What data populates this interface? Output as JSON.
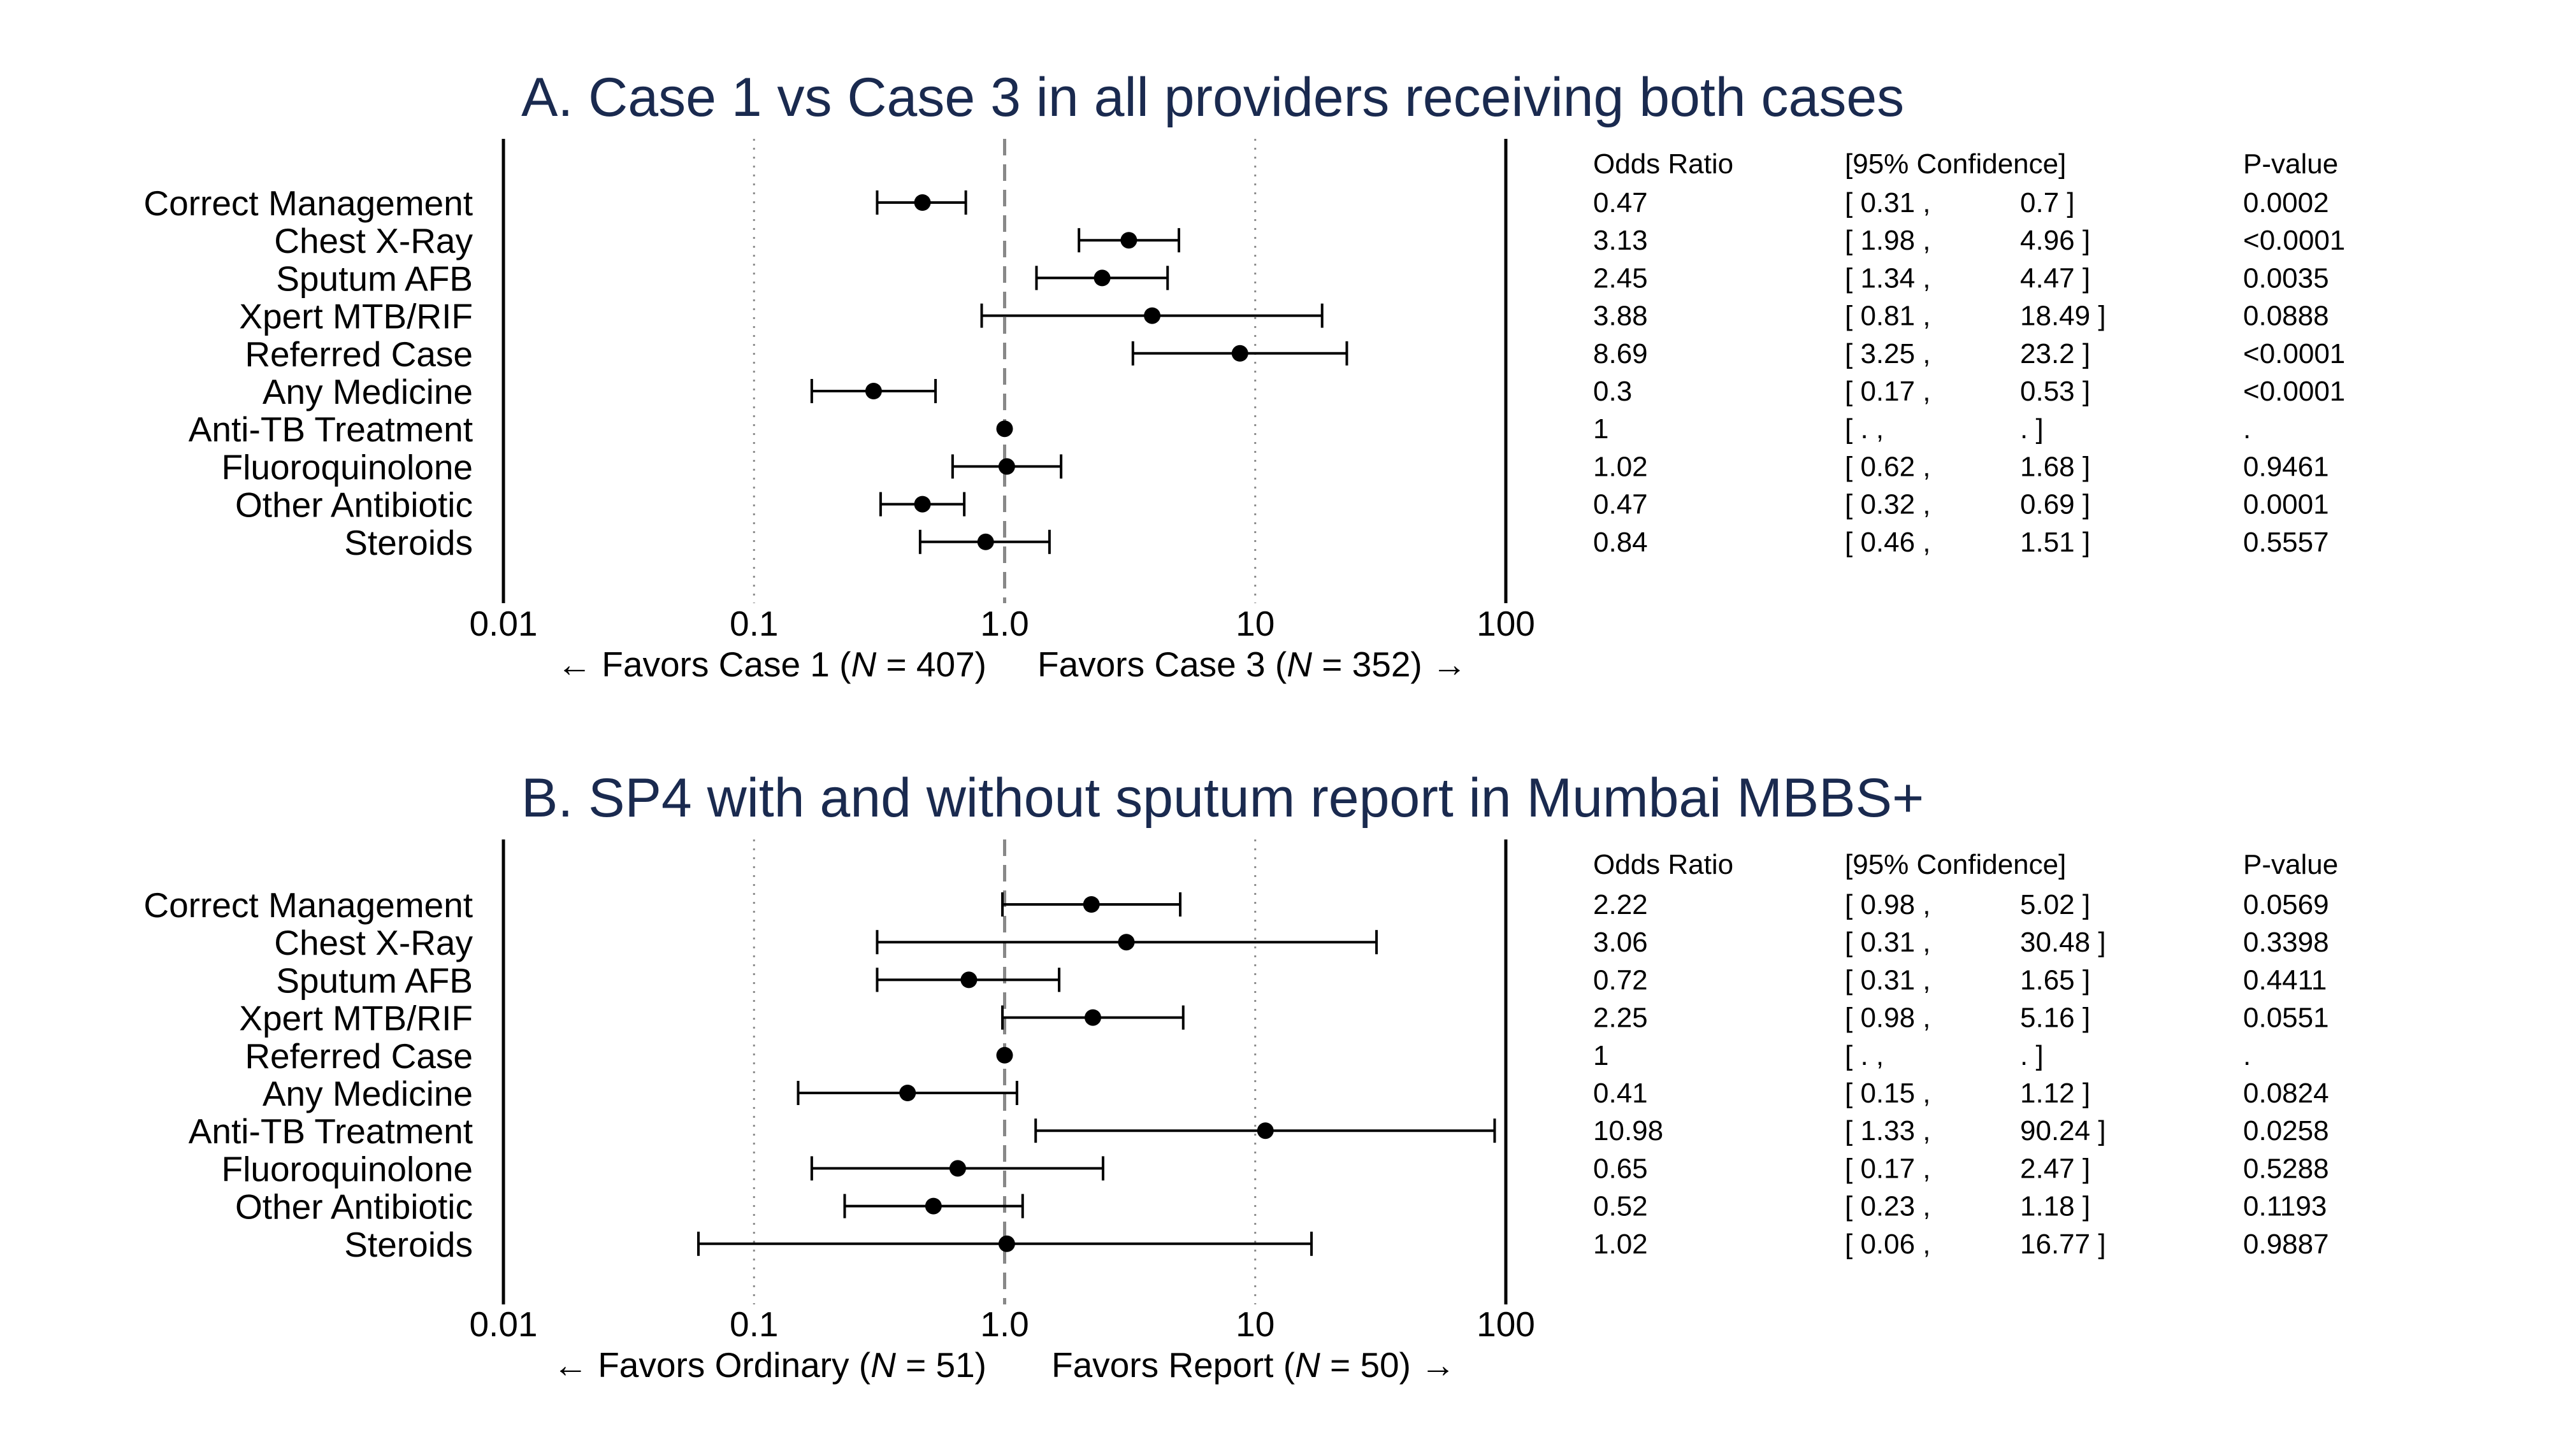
{
  "chart_data": [
    {
      "type": "forest",
      "title": "A. Case 1 vs Case 3 in all providers receiving both cases",
      "x_scale": "log",
      "xlim": [
        0.01,
        100
      ],
      "ticks": [
        "0.01",
        "0.1",
        "1.0",
        "10",
        "100"
      ],
      "tick_values": [
        0.01,
        0.1,
        1,
        10,
        100
      ],
      "reference_line": 1,
      "favors_left": {
        "arrow": "←",
        "pre": "Favors Case 1 (",
        "n_symbol": "N",
        "post": " = 407)"
      },
      "favors_right": {
        "pre": "Favors Case 3 (",
        "n_symbol": "N",
        "post": " = 352)",
        "arrow": "→"
      },
      "columns": {
        "or": "Odds Ratio",
        "ci": "[95% Confidence]",
        "p": "P-value"
      },
      "rows": [
        {
          "label": "Correct Management",
          "or": 0.47,
          "lo": 0.31,
          "hi": 0.7,
          "or_text": "0.47",
          "lo_text": "[ 0.31 ,",
          "hi_text": "0.7 ]",
          "p_text": "0.0002"
        },
        {
          "label": "Chest X-Ray",
          "or": 3.13,
          "lo": 1.98,
          "hi": 4.96,
          "or_text": "3.13",
          "lo_text": "[ 1.98 ,",
          "hi_text": "4.96 ]",
          "p_text": "<0.0001"
        },
        {
          "label": "Sputum AFB",
          "or": 2.45,
          "lo": 1.34,
          "hi": 4.47,
          "or_text": "2.45",
          "lo_text": "[ 1.34 ,",
          "hi_text": "4.47 ]",
          "p_text": "0.0035"
        },
        {
          "label": "Xpert MTB/RIF",
          "or": 3.88,
          "lo": 0.81,
          "hi": 18.49,
          "or_text": "3.88",
          "lo_text": "[ 0.81 ,",
          "hi_text": "18.49 ]",
          "p_text": "0.0888"
        },
        {
          "label": "Referred Case",
          "or": 8.69,
          "lo": 3.25,
          "hi": 23.2,
          "or_text": "8.69",
          "lo_text": "[ 3.25 ,",
          "hi_text": "23.2 ]",
          "p_text": "<0.0001"
        },
        {
          "label": "Any Medicine",
          "or": 0.3,
          "lo": 0.17,
          "hi": 0.53,
          "or_text": "0.3",
          "lo_text": "[ 0.17 ,",
          "hi_text": "0.53 ]",
          "p_text": "<0.0001"
        },
        {
          "label": "Anti-TB Treatment",
          "or": 1,
          "lo": null,
          "hi": null,
          "or_text": "1",
          "lo_text": "[ . ,",
          "hi_text": ". ]",
          "p_text": "."
        },
        {
          "label": "Fluoroquinolone",
          "or": 1.02,
          "lo": 0.62,
          "hi": 1.68,
          "or_text": "1.02",
          "lo_text": "[ 0.62 ,",
          "hi_text": "1.68 ]",
          "p_text": "0.9461"
        },
        {
          "label": "Other Antibiotic",
          "or": 0.47,
          "lo": 0.32,
          "hi": 0.69,
          "or_text": "0.47",
          "lo_text": "[ 0.32 ,",
          "hi_text": "0.69 ]",
          "p_text": "0.0001"
        },
        {
          "label": "Steroids",
          "or": 0.84,
          "lo": 0.46,
          "hi": 1.51,
          "or_text": "0.84",
          "lo_text": "[ 0.46 ,",
          "hi_text": "1.51 ]",
          "p_text": "0.5557"
        }
      ]
    },
    {
      "type": "forest",
      "title": "B. SP4 with and without sputum report in Mumbai MBBS+",
      "x_scale": "log",
      "xlim": [
        0.01,
        100
      ],
      "ticks": [
        "0.01",
        "0.1",
        "1.0",
        "10",
        "100"
      ],
      "tick_values": [
        0.01,
        0.1,
        1,
        10,
        100
      ],
      "reference_line": 1,
      "favors_left": {
        "arrow": "←",
        "pre": "Favors Ordinary (",
        "n_symbol": "N",
        "post": " = 51)"
      },
      "favors_right": {
        "pre": "Favors Report (",
        "n_symbol": "N",
        "post": " = 50)",
        "arrow": "→"
      },
      "columns": {
        "or": "Odds Ratio",
        "ci": "[95% Confidence]",
        "p": "P-value"
      },
      "rows": [
        {
          "label": "Correct Management",
          "or": 2.22,
          "lo": 0.98,
          "hi": 5.02,
          "or_text": "2.22",
          "lo_text": "[ 0.98 ,",
          "hi_text": "5.02 ]",
          "p_text": "0.0569"
        },
        {
          "label": "Chest X-Ray",
          "or": 3.06,
          "lo": 0.31,
          "hi": 30.48,
          "or_text": "3.06",
          "lo_text": "[ 0.31 ,",
          "hi_text": "30.48 ]",
          "p_text": "0.3398"
        },
        {
          "label": "Sputum AFB",
          "or": 0.72,
          "lo": 0.31,
          "hi": 1.65,
          "or_text": "0.72",
          "lo_text": "[ 0.31 ,",
          "hi_text": "1.65 ]",
          "p_text": "0.4411"
        },
        {
          "label": "Xpert MTB/RIF",
          "or": 2.25,
          "lo": 0.98,
          "hi": 5.16,
          "or_text": "2.25",
          "lo_text": "[ 0.98 ,",
          "hi_text": "5.16 ]",
          "p_text": "0.0551"
        },
        {
          "label": "Referred Case",
          "or": 1,
          "lo": null,
          "hi": null,
          "or_text": "1",
          "lo_text": "[ . ,",
          "hi_text": ". ]",
          "p_text": "."
        },
        {
          "label": "Any Medicine",
          "or": 0.41,
          "lo": 0.15,
          "hi": 1.12,
          "or_text": "0.41",
          "lo_text": "[ 0.15 ,",
          "hi_text": "1.12 ]",
          "p_text": "0.0824"
        },
        {
          "label": "Anti-TB Treatment",
          "or": 10.98,
          "lo": 1.33,
          "hi": 90.24,
          "or_text": "10.98",
          "lo_text": "[ 1.33 ,",
          "hi_text": "90.24 ]",
          "p_text": "0.0258"
        },
        {
          "label": "Fluoroquinolone",
          "or": 0.65,
          "lo": 0.17,
          "hi": 2.47,
          "or_text": "0.65",
          "lo_text": "[ 0.17 ,",
          "hi_text": "2.47 ]",
          "p_text": "0.5288"
        },
        {
          "label": "Other Antibiotic",
          "or": 0.52,
          "lo": 0.23,
          "hi": 1.18,
          "or_text": "0.52",
          "lo_text": "[ 0.23 ,",
          "hi_text": "1.18 ]",
          "p_text": "0.1193"
        },
        {
          "label": "Steroids",
          "or": 1.02,
          "lo": 0.06,
          "hi": 16.77,
          "or_text": "1.02",
          "lo_text": "[ 0.06 ,",
          "hi_text": "16.77 ]",
          "p_text": "0.9887"
        }
      ]
    }
  ]
}
